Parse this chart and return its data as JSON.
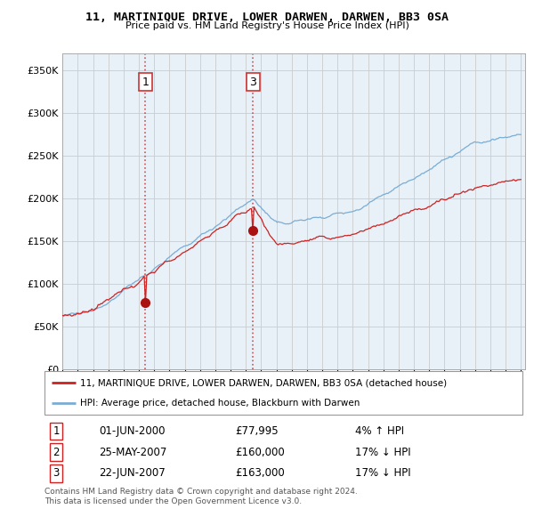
{
  "title": "11, MARTINIQUE DRIVE, LOWER DARWEN, DARWEN, BB3 0SA",
  "subtitle": "Price paid vs. HM Land Registry's House Price Index (HPI)",
  "ylim": [
    0,
    370000
  ],
  "yticks": [
    0,
    50000,
    100000,
    150000,
    200000,
    250000,
    300000,
    350000
  ],
  "ytick_labels": [
    "£0",
    "£50K",
    "£100K",
    "£150K",
    "£200K",
    "£250K",
    "£300K",
    "£350K"
  ],
  "hpi_color": "#7aadd4",
  "property_color": "#cc2222",
  "vline_color": "#cc3333",
  "dot_color": "#aa1111",
  "grid_color": "#cccccc",
  "chart_bg": "#e8f0f8",
  "background_color": "#ffffff",
  "legend_property": "11, MARTINIQUE DRIVE, LOWER DARWEN, DARWEN, BB3 0SA (detached house)",
  "legend_hpi": "HPI: Average price, detached house, Blackburn with Darwen",
  "transactions": [
    {
      "num": 1,
      "date_str": "01-JUN-2000",
      "price": 77995,
      "pct": "4%",
      "dir": "↑",
      "year": 2000.42
    },
    {
      "num": 2,
      "date_str": "25-MAY-2007",
      "price": 160000,
      "pct": "17%",
      "dir": "↓",
      "year": 2007.39
    },
    {
      "num": 3,
      "date_str": "22-JUN-2007",
      "price": 163000,
      "pct": "17%",
      "dir": "↓",
      "year": 2007.47
    }
  ],
  "footer_line1": "Contains HM Land Registry data © Crown copyright and database right 2024.",
  "footer_line2": "This data is licensed under the Open Government Licence v3.0.",
  "xlim_start": 1995.0,
  "xlim_end": 2025.3
}
